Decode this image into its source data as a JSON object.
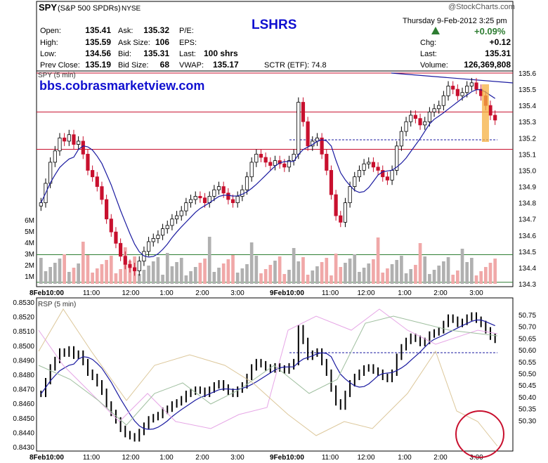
{
  "header": {
    "symbol": "SPY",
    "name": "(S&P 500 SPDRs)",
    "exchange": "NYSE",
    "title": "LSHRS",
    "watermark": "@StockCharts.com",
    "date": "Thursday   9-Feb-2012   3:25 pm",
    "pct_change": "+0.09%",
    "arrow": "up-triangle-icon",
    "quotes": [
      {
        "label": "Open:",
        "value": "135.41"
      },
      {
        "label": "High:",
        "value": "135.59"
      },
      {
        "label": "Low:",
        "value": "134.56"
      },
      {
        "label": "Prev Close:",
        "value": "135.19"
      }
    ],
    "quotes2": [
      {
        "label": "Ask:",
        "value": "135.32"
      },
      {
        "label": "Ask Size:",
        "value": "106"
      },
      {
        "label": "Bid:",
        "value": "135.31"
      },
      {
        "label": "Bid Size:",
        "value": "68"
      }
    ],
    "quotes3": [
      {
        "label": "P/E:",
        "value": ""
      },
      {
        "label": "EPS:",
        "value": ""
      },
      {
        "label": "Last:",
        "value": "100 shrs"
      },
      {
        "label": "VWAP:",
        "value": "135.17"
      }
    ],
    "sctr": "SCTR (ETF):  74.8",
    "right": [
      {
        "label": "Chg:",
        "value": "+0.12"
      },
      {
        "label": "Last:",
        "value": "135.31"
      },
      {
        "label": "Volume:",
        "value": "126,369,808"
      }
    ]
  },
  "colors": {
    "up": "#000000",
    "down": "#c8102e",
    "ma": "#1a1aa0",
    "vol_up": "#b0b0b0",
    "vol_down": "#f0a8a8",
    "blue_text": "#1010d0",
    "pct_green": "#2e7d32"
  },
  "chart_data": [
    {
      "type": "candlestick",
      "panel_label": "SPY (5 min)",
      "watermark_url": "bbs.cobrasmarketview.com",
      "ylim": [
        134.3,
        135.6
      ],
      "y_ticks": [
        "135.6",
        "135.5",
        "135.4",
        "135.3",
        "135.2",
        "135.1",
        "135.0",
        "134.9",
        "134.8",
        "134.7",
        "134.6",
        "134.5",
        "134.4",
        "134.3"
      ],
      "volume_ticks": [
        "6M",
        "5M",
        "4M",
        "3M",
        "2M",
        "1M"
      ],
      "x_ticks": [
        "8Feb10:00",
        "11:00",
        "12:00",
        "1:00",
        "2:00",
        "3:00",
        "9Feb10:00",
        "11:00",
        "12:00",
        "1:00",
        "2:00",
        "3:00"
      ],
      "horizontal_lines": [
        {
          "color": "red",
          "value": 135.6
        },
        {
          "color": "red",
          "value": 135.36
        },
        {
          "color": "red",
          "value": 135.13
        },
        {
          "color": "green",
          "value": 134.48
        },
        {
          "color": "green",
          "value": 134.31
        }
      ],
      "close_series": [
        134.8,
        134.92,
        135.05,
        135.12,
        135.2,
        135.18,
        135.22,
        135.16,
        135.18,
        135.1,
        135.0,
        134.96,
        134.9,
        134.82,
        134.7,
        134.62,
        134.55,
        134.47,
        134.42,
        134.4,
        134.38,
        134.44,
        134.5,
        134.56,
        134.58,
        134.6,
        134.64,
        134.66,
        134.7,
        134.72,
        134.75,
        134.8,
        134.82,
        134.84,
        134.83,
        134.8,
        134.84,
        134.88,
        134.9,
        134.86,
        134.82,
        134.8,
        134.84,
        134.88,
        134.96,
        135.05,
        135.1,
        135.08,
        135.05,
        135.03,
        135.06,
        135.04,
        135.02,
        135.06,
        135.1,
        135.42,
        135.3,
        135.15,
        135.18,
        135.2,
        135.1,
        135.0,
        134.85,
        134.72,
        134.68,
        134.8,
        134.9,
        134.96,
        135.0,
        135.04,
        135.05,
        135.02,
        135.0,
        134.96,
        134.94,
        135.0,
        135.15,
        135.24,
        135.3,
        135.34,
        135.32,
        135.28,
        135.3,
        135.36,
        135.38,
        135.4,
        135.46,
        135.52,
        135.5,
        135.46,
        135.48,
        135.52,
        135.54,
        135.5,
        135.46,
        135.4,
        135.34,
        135.31
      ]
    },
    {
      "type": "line",
      "panel_label": "RSP (5 min)",
      "left_ticks": [
        "0.8530",
        "0.8520",
        "0.8510",
        "0.8500",
        "0.8490",
        "0.8480",
        "0.8470",
        "0.8460",
        "0.8450",
        "0.8440",
        "0.8430"
      ],
      "right_ticks": [
        "50.75",
        "50.70",
        "50.65",
        "50.60",
        "50.55",
        "50.50",
        "50.45",
        "50.40",
        "50.35",
        "50.30"
      ],
      "x_ticks": [
        "8Feb10:00",
        "11:00",
        "12:00",
        "1:00",
        "2:00",
        "3:00",
        "9Feb10:00",
        "11:00",
        "12:00",
        "1:00",
        "2:00",
        "3:00"
      ]
    }
  ]
}
